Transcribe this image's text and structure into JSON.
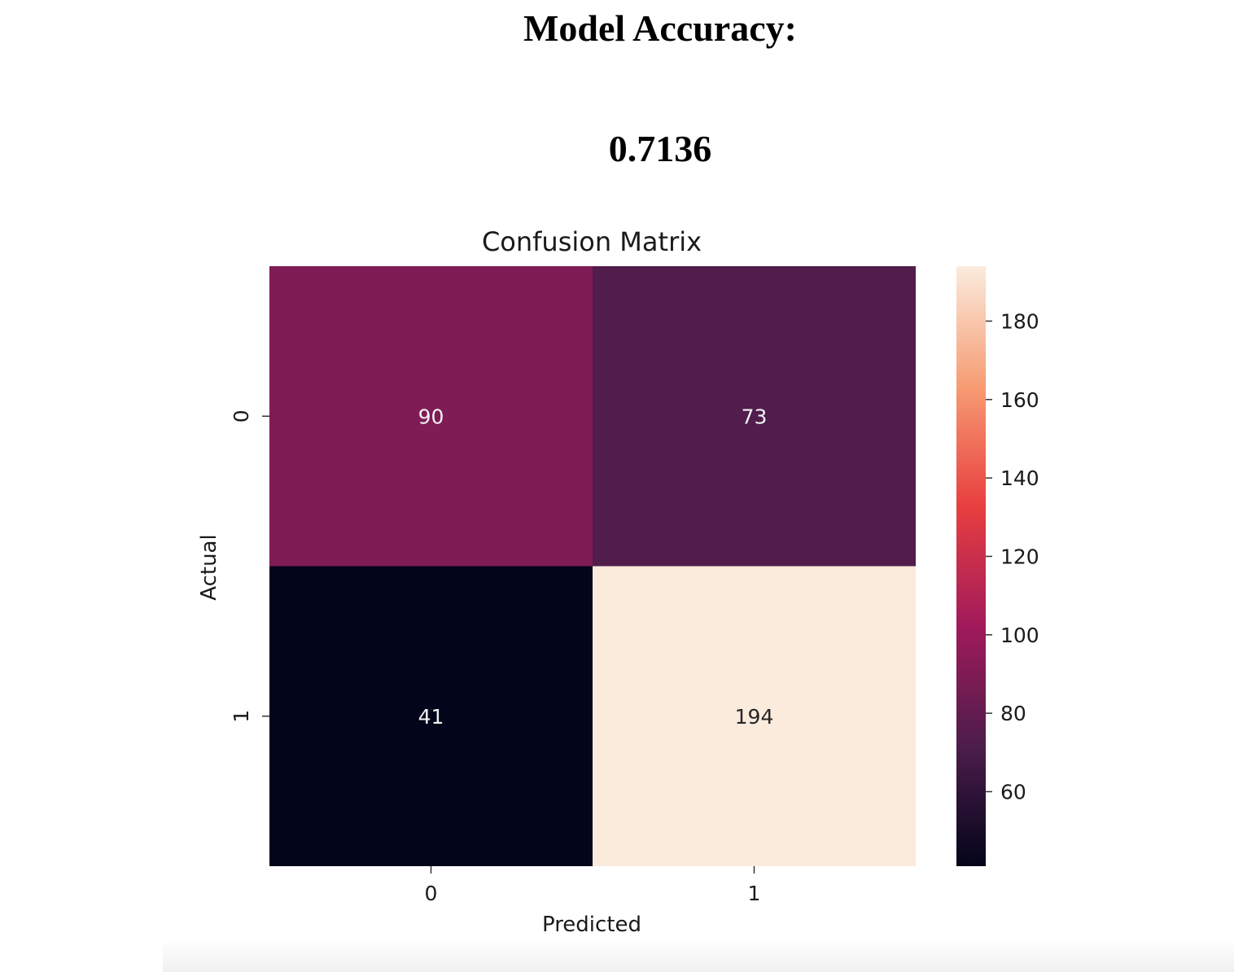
{
  "page": {
    "accuracy_label": "Model Accuracy:",
    "accuracy_value": "0.7136"
  },
  "chart_data": {
    "type": "heatmap",
    "title": "Confusion Matrix",
    "xlabel": "Predicted",
    "ylabel": "Actual",
    "x_categories": [
      "0",
      "1"
    ],
    "y_categories": [
      "0",
      "1"
    ],
    "values": [
      [
        90,
        73
      ],
      [
        41,
        194
      ]
    ],
    "colorbar": {
      "min": 41,
      "max": 194,
      "ticks": [
        60,
        80,
        100,
        120,
        140,
        160,
        180
      ],
      "colormap": "rocket",
      "stops": [
        "#03051a",
        "#4c1d4b",
        "#a11a5b",
        "#e83f3f",
        "#f69c73",
        "#faebdd"
      ]
    },
    "grid": false
  }
}
